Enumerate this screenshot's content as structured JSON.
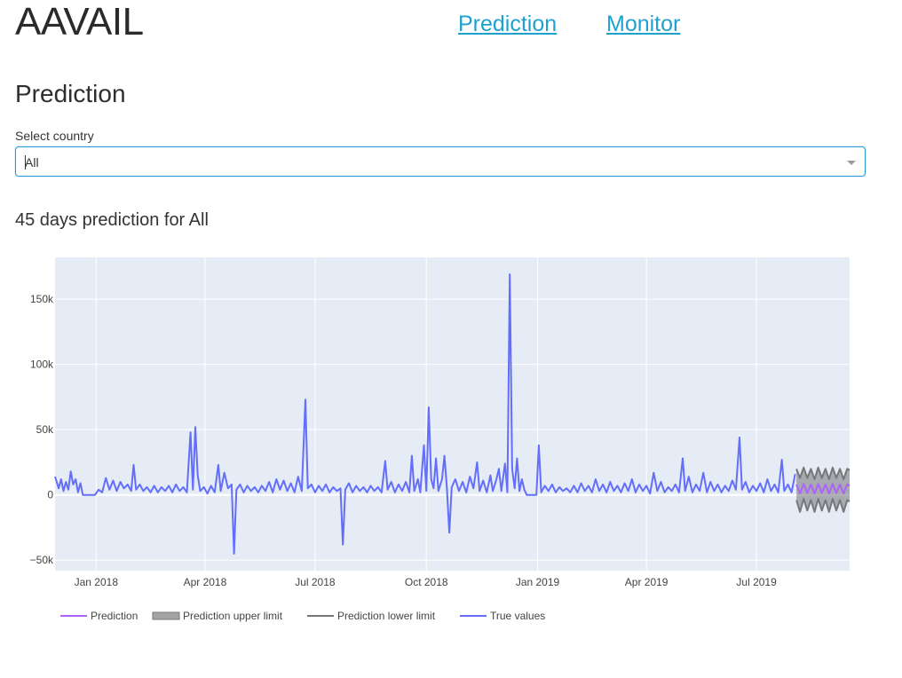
{
  "app": {
    "title": "AAVAIL"
  },
  "nav": {
    "prediction": "Prediction",
    "monitor": "Monitor"
  },
  "page": {
    "heading": "Prediction"
  },
  "country_select": {
    "label": "Select country",
    "value": "All"
  },
  "chart_heading": "45 days prediction for All",
  "colors": {
    "true_values": "#636efa",
    "prediction": "#ab63fa",
    "limits": "#777777",
    "plot_bg": "#e5ecf6",
    "link": "#1ea1d0"
  },
  "chart_data": {
    "type": "line",
    "xlabel": "",
    "ylabel": "",
    "x_range": [
      "2017-11-28",
      "2019-09-16"
    ],
    "ylim": [
      -58000,
      182000
    ],
    "y_ticks": [
      -50000,
      0,
      50000,
      100000,
      150000
    ],
    "y_tick_labels": [
      "−50k",
      "0",
      "50k",
      "100k",
      "150k"
    ],
    "x_ticks": [
      "2018-01-01",
      "2018-04-01",
      "2018-07-01",
      "2018-10-01",
      "2019-01-01",
      "2019-04-01",
      "2019-07-01"
    ],
    "x_tick_labels": [
      "Jan 2018",
      "Apr 2018",
      "Jul 2018",
      "Oct 2018",
      "Jan 2019",
      "Apr 2019",
      "Jul 2019"
    ],
    "grid": true,
    "legend_position": "bottom",
    "series": [
      {
        "name": "Prediction",
        "color": "#ab63fa",
        "points": [
          [
            "2019-08-03",
            8000
          ],
          [
            "2019-08-06",
            1000
          ],
          [
            "2019-08-09",
            8500
          ],
          [
            "2019-08-12",
            1500
          ],
          [
            "2019-08-15",
            8000
          ],
          [
            "2019-08-18",
            1000
          ],
          [
            "2019-08-21",
            8500
          ],
          [
            "2019-08-24",
            1500
          ],
          [
            "2019-08-27",
            8000
          ],
          [
            "2019-08-30",
            1000
          ],
          [
            "2019-09-02",
            8500
          ],
          [
            "2019-09-05",
            1500
          ],
          [
            "2019-09-08",
            8000
          ],
          [
            "2019-09-11",
            1000
          ],
          [
            "2019-09-14",
            8000
          ],
          [
            "2019-09-16",
            7000
          ]
        ]
      },
      {
        "name": "Prediction upper limit",
        "color": "#777777",
        "points": [
          [
            "2019-08-03",
            20000
          ],
          [
            "2019-08-06",
            13000
          ],
          [
            "2019-08-09",
            21000
          ],
          [
            "2019-08-12",
            13000
          ],
          [
            "2019-08-15",
            20000
          ],
          [
            "2019-08-18",
            12000
          ],
          [
            "2019-08-21",
            21000
          ],
          [
            "2019-08-24",
            13000
          ],
          [
            "2019-08-27",
            20000
          ],
          [
            "2019-08-30",
            12000
          ],
          [
            "2019-09-02",
            21000
          ],
          [
            "2019-09-05",
            13000
          ],
          [
            "2019-09-08",
            20000
          ],
          [
            "2019-09-11",
            12000
          ],
          [
            "2019-09-14",
            20000
          ],
          [
            "2019-09-16",
            19000
          ]
        ]
      },
      {
        "name": "Prediction lower limit",
        "color": "#777777",
        "points": [
          [
            "2019-08-03",
            -4000
          ],
          [
            "2019-08-06",
            -13000
          ],
          [
            "2019-08-09",
            -3000
          ],
          [
            "2019-08-12",
            -12000
          ],
          [
            "2019-08-15",
            -4000
          ],
          [
            "2019-08-18",
            -13000
          ],
          [
            "2019-08-21",
            -3000
          ],
          [
            "2019-08-24",
            -12000
          ],
          [
            "2019-08-27",
            -4000
          ],
          [
            "2019-08-30",
            -13000
          ],
          [
            "2019-09-02",
            -3000
          ],
          [
            "2019-09-05",
            -12000
          ],
          [
            "2019-09-08",
            -4000
          ],
          [
            "2019-09-11",
            -13000
          ],
          [
            "2019-09-14",
            -4000
          ],
          [
            "2019-09-16",
            -5000
          ]
        ]
      },
      {
        "name": "True values",
        "color": "#636efa",
        "points": [
          [
            "2017-11-28",
            14000
          ],
          [
            "2017-12-01",
            5000
          ],
          [
            "2017-12-03",
            12000
          ],
          [
            "2017-12-05",
            3000
          ],
          [
            "2017-12-07",
            10000
          ],
          [
            "2017-12-09",
            4000
          ],
          [
            "2017-12-11",
            18000
          ],
          [
            "2017-12-13",
            8000
          ],
          [
            "2017-12-15",
            12000
          ],
          [
            "2017-12-17",
            2000
          ],
          [
            "2017-12-19",
            9000
          ],
          [
            "2017-12-21",
            0
          ],
          [
            "2017-12-31",
            0
          ],
          [
            "2018-01-03",
            4000
          ],
          [
            "2018-01-06",
            2000
          ],
          [
            "2018-01-09",
            13000
          ],
          [
            "2018-01-12",
            4000
          ],
          [
            "2018-01-15",
            11000
          ],
          [
            "2018-01-18",
            3000
          ],
          [
            "2018-01-21",
            10000
          ],
          [
            "2018-01-24",
            5000
          ],
          [
            "2018-01-27",
            8000
          ],
          [
            "2018-01-30",
            3000
          ],
          [
            "2018-02-01",
            23000
          ],
          [
            "2018-02-03",
            4000
          ],
          [
            "2018-02-06",
            8000
          ],
          [
            "2018-02-09",
            3000
          ],
          [
            "2018-02-12",
            6000
          ],
          [
            "2018-02-15",
            2000
          ],
          [
            "2018-02-18",
            7000
          ],
          [
            "2018-02-21",
            2000
          ],
          [
            "2018-02-24",
            6000
          ],
          [
            "2018-02-27",
            3000
          ],
          [
            "2018-03-02",
            7000
          ],
          [
            "2018-03-05",
            2000
          ],
          [
            "2018-03-08",
            8000
          ],
          [
            "2018-03-11",
            3000
          ],
          [
            "2018-03-14",
            6000
          ],
          [
            "2018-03-17",
            2000
          ],
          [
            "2018-03-20",
            48000
          ],
          [
            "2018-03-22",
            4000
          ],
          [
            "2018-03-24",
            52000
          ],
          [
            "2018-03-26",
            15000
          ],
          [
            "2018-03-28",
            3000
          ],
          [
            "2018-03-31",
            6000
          ],
          [
            "2018-04-03",
            1000
          ],
          [
            "2018-04-06",
            7000
          ],
          [
            "2018-04-09",
            2000
          ],
          [
            "2018-04-12",
            23000
          ],
          [
            "2018-04-14",
            3000
          ],
          [
            "2018-04-17",
            17000
          ],
          [
            "2018-04-20",
            5000
          ],
          [
            "2018-04-23",
            8000
          ],
          [
            "2018-04-25",
            -45000
          ],
          [
            "2018-04-27",
            4000
          ],
          [
            "2018-04-30",
            8000
          ],
          [
            "2018-05-03",
            2000
          ],
          [
            "2018-05-06",
            7000
          ],
          [
            "2018-05-09",
            3000
          ],
          [
            "2018-05-12",
            6000
          ],
          [
            "2018-05-15",
            2000
          ],
          [
            "2018-05-18",
            7000
          ],
          [
            "2018-05-21",
            3000
          ],
          [
            "2018-05-24",
            10000
          ],
          [
            "2018-05-27",
            2000
          ],
          [
            "2018-05-30",
            12000
          ],
          [
            "2018-06-02",
            4000
          ],
          [
            "2018-06-05",
            11000
          ],
          [
            "2018-06-08",
            3000
          ],
          [
            "2018-06-11",
            9000
          ],
          [
            "2018-06-14",
            2000
          ],
          [
            "2018-06-17",
            14000
          ],
          [
            "2018-06-20",
            3000
          ],
          [
            "2018-06-23",
            73000
          ],
          [
            "2018-06-25",
            5000
          ],
          [
            "2018-06-28",
            8000
          ],
          [
            "2018-07-01",
            2000
          ],
          [
            "2018-07-04",
            7000
          ],
          [
            "2018-07-07",
            3000
          ],
          [
            "2018-07-10",
            8000
          ],
          [
            "2018-07-13",
            2000
          ],
          [
            "2018-07-16",
            6000
          ],
          [
            "2018-07-19",
            3000
          ],
          [
            "2018-07-22",
            5000
          ],
          [
            "2018-07-24",
            -38000
          ],
          [
            "2018-07-26",
            4000
          ],
          [
            "2018-07-29",
            9000
          ],
          [
            "2018-08-01",
            2000
          ],
          [
            "2018-08-04",
            7000
          ],
          [
            "2018-08-07",
            3000
          ],
          [
            "2018-08-10",
            6000
          ],
          [
            "2018-08-13",
            2000
          ],
          [
            "2018-08-16",
            7000
          ],
          [
            "2018-08-19",
            3000
          ],
          [
            "2018-08-22",
            6000
          ],
          [
            "2018-08-25",
            2000
          ],
          [
            "2018-08-28",
            26000
          ],
          [
            "2018-08-30",
            4000
          ],
          [
            "2018-09-02",
            10000
          ],
          [
            "2018-09-05",
            2000
          ],
          [
            "2018-09-08",
            8000
          ],
          [
            "2018-09-11",
            3000
          ],
          [
            "2018-09-14",
            10000
          ],
          [
            "2018-09-17",
            2000
          ],
          [
            "2018-09-19",
            30000
          ],
          [
            "2018-09-21",
            3000
          ],
          [
            "2018-09-24",
            12000
          ],
          [
            "2018-09-26",
            2000
          ],
          [
            "2018-09-29",
            38000
          ],
          [
            "2018-10-01",
            3000
          ],
          [
            "2018-10-03",
            67000
          ],
          [
            "2018-10-05",
            12000
          ],
          [
            "2018-10-07",
            5000
          ],
          [
            "2018-10-09",
            28000
          ],
          [
            "2018-10-11",
            3000
          ],
          [
            "2018-10-14",
            12000
          ],
          [
            "2018-10-16",
            30000
          ],
          [
            "2018-10-18",
            5000
          ],
          [
            "2018-10-20",
            -29000
          ],
          [
            "2018-10-22",
            6000
          ],
          [
            "2018-10-25",
            12000
          ],
          [
            "2018-10-28",
            3000
          ],
          [
            "2018-10-31",
            10000
          ],
          [
            "2018-11-03",
            2000
          ],
          [
            "2018-11-06",
            14000
          ],
          [
            "2018-11-09",
            5000
          ],
          [
            "2018-11-12",
            25000
          ],
          [
            "2018-11-14",
            3000
          ],
          [
            "2018-11-17",
            11000
          ],
          [
            "2018-11-20",
            2000
          ],
          [
            "2018-11-23",
            15000
          ],
          [
            "2018-11-25",
            3000
          ],
          [
            "2018-11-28",
            12000
          ],
          [
            "2018-11-30",
            20000
          ],
          [
            "2018-12-02",
            3000
          ],
          [
            "2018-12-05",
            24000
          ],
          [
            "2018-12-07",
            2000
          ],
          [
            "2018-12-09",
            169000
          ],
          [
            "2018-12-11",
            20000
          ],
          [
            "2018-12-13",
            5000
          ],
          [
            "2018-12-15",
            28000
          ],
          [
            "2018-12-17",
            3000
          ],
          [
            "2018-12-19",
            12000
          ],
          [
            "2018-12-21",
            4000
          ],
          [
            "2018-12-23",
            0
          ],
          [
            "2018-12-31",
            0
          ],
          [
            "2019-01-02",
            38000
          ],
          [
            "2019-01-04",
            2000
          ],
          [
            "2019-01-07",
            7000
          ],
          [
            "2019-01-10",
            3000
          ],
          [
            "2019-01-13",
            8000
          ],
          [
            "2019-01-16",
            2000
          ],
          [
            "2019-01-19",
            6000
          ],
          [
            "2019-01-22",
            3000
          ],
          [
            "2019-01-25",
            5000
          ],
          [
            "2019-01-28",
            2000
          ],
          [
            "2019-01-31",
            7000
          ],
          [
            "2019-02-03",
            2000
          ],
          [
            "2019-02-06",
            9000
          ],
          [
            "2019-02-09",
            3000
          ],
          [
            "2019-02-12",
            7000
          ],
          [
            "2019-02-15",
            2000
          ],
          [
            "2019-02-18",
            12000
          ],
          [
            "2019-02-21",
            3000
          ],
          [
            "2019-02-24",
            8000
          ],
          [
            "2019-02-27",
            2000
          ],
          [
            "2019-03-02",
            10000
          ],
          [
            "2019-03-05",
            3000
          ],
          [
            "2019-03-08",
            7000
          ],
          [
            "2019-03-11",
            2000
          ],
          [
            "2019-03-14",
            9000
          ],
          [
            "2019-03-17",
            3000
          ],
          [
            "2019-03-20",
            12000
          ],
          [
            "2019-03-23",
            2000
          ],
          [
            "2019-03-26",
            8000
          ],
          [
            "2019-03-29",
            3000
          ],
          [
            "2019-04-01",
            7000
          ],
          [
            "2019-04-04",
            1000
          ],
          [
            "2019-04-07",
            17000
          ],
          [
            "2019-04-10",
            3000
          ],
          [
            "2019-04-13",
            10000
          ],
          [
            "2019-04-16",
            2000
          ],
          [
            "2019-04-19",
            6000
          ],
          [
            "2019-04-22",
            3000
          ],
          [
            "2019-04-25",
            8000
          ],
          [
            "2019-04-28",
            2000
          ],
          [
            "2019-05-01",
            28000
          ],
          [
            "2019-05-03",
            3000
          ],
          [
            "2019-05-06",
            14000
          ],
          [
            "2019-05-09",
            2000
          ],
          [
            "2019-05-12",
            8000
          ],
          [
            "2019-05-15",
            3000
          ],
          [
            "2019-05-18",
            17000
          ],
          [
            "2019-05-21",
            2000
          ],
          [
            "2019-05-24",
            10000
          ],
          [
            "2019-05-27",
            3000
          ],
          [
            "2019-05-30",
            8000
          ],
          [
            "2019-06-02",
            2000
          ],
          [
            "2019-06-05",
            7000
          ],
          [
            "2019-06-08",
            3000
          ],
          [
            "2019-06-11",
            11000
          ],
          [
            "2019-06-14",
            4000
          ],
          [
            "2019-06-17",
            44000
          ],
          [
            "2019-06-19",
            4000
          ],
          [
            "2019-06-22",
            10000
          ],
          [
            "2019-06-25",
            2000
          ],
          [
            "2019-06-28",
            7000
          ],
          [
            "2019-07-01",
            3000
          ],
          [
            "2019-07-04",
            9000
          ],
          [
            "2019-07-07",
            2000
          ],
          [
            "2019-07-10",
            12000
          ],
          [
            "2019-07-13",
            3000
          ],
          [
            "2019-07-16",
            8000
          ],
          [
            "2019-07-19",
            2000
          ],
          [
            "2019-07-22",
            27000
          ],
          [
            "2019-07-24",
            3000
          ],
          [
            "2019-07-27",
            8000
          ],
          [
            "2019-07-30",
            2000
          ],
          [
            "2019-08-02",
            16000
          ]
        ]
      }
    ]
  }
}
